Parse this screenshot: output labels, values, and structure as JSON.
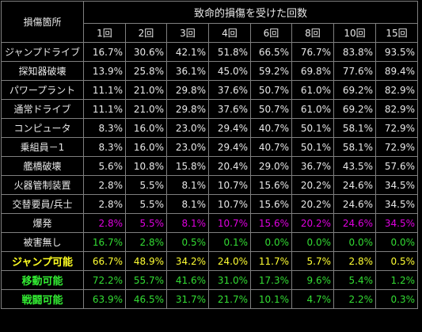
{
  "header": {
    "location_label": "損傷箇所",
    "title": "致命的損傷を受けた回数",
    "columns": [
      "1回",
      "2回",
      "3回",
      "4回",
      "6回",
      "8回",
      "10回",
      "15回"
    ]
  },
  "rows": [
    {
      "label": "ジャンプドライブ",
      "values": [
        "16.7%",
        "30.6%",
        "42.1%",
        "51.8%",
        "66.5%",
        "76.7%",
        "83.8%",
        "93.5%"
      ]
    },
    {
      "label": "探知器破壊",
      "values": [
        "13.9%",
        "25.8%",
        "36.1%",
        "45.0%",
        "59.2%",
        "69.8%",
        "77.6%",
        "89.4%"
      ]
    },
    {
      "label": "パワープラント",
      "values": [
        "11.1%",
        "21.0%",
        "29.8%",
        "37.6%",
        "50.7%",
        "61.0%",
        "69.2%",
        "82.9%"
      ]
    },
    {
      "label": "通常ドライブ",
      "values": [
        "11.1%",
        "21.0%",
        "29.8%",
        "37.6%",
        "50.7%",
        "61.0%",
        "69.2%",
        "82.9%"
      ]
    },
    {
      "label": "コンピュータ",
      "values": [
        "8.3%",
        "16.0%",
        "23.0%",
        "29.4%",
        "40.7%",
        "50.1%",
        "58.1%",
        "72.9%"
      ]
    },
    {
      "label": "乗組員－1",
      "values": [
        "8.3%",
        "16.0%",
        "23.0%",
        "29.4%",
        "40.7%",
        "50.1%",
        "58.1%",
        "72.9%"
      ]
    },
    {
      "label": "艦橋破壊",
      "values": [
        "5.6%",
        "10.8%",
        "15.8%",
        "20.4%",
        "29.0%",
        "36.7%",
        "43.5%",
        "57.6%"
      ]
    },
    {
      "label": "火器管制装置",
      "values": [
        "2.8%",
        "5.5%",
        "8.1%",
        "10.7%",
        "15.6%",
        "20.2%",
        "24.6%",
        "34.5%"
      ]
    },
    {
      "label": "交替要員/兵士",
      "values": [
        "2.8%",
        "5.5%",
        "8.1%",
        "10.7%",
        "15.6%",
        "20.2%",
        "24.6%",
        "34.5%"
      ]
    }
  ],
  "explosion": {
    "label": "爆発",
    "values": [
      "2.8%",
      "5.5%",
      "8.1%",
      "10.7%",
      "15.6%",
      "20.2%",
      "24.6%",
      "34.5%"
    ]
  },
  "no_damage": {
    "label": "被害無し",
    "values": [
      "16.7%",
      "2.8%",
      "0.5%",
      "0.1%",
      "0.0%",
      "0.0%",
      "0.0%",
      "0.0%"
    ]
  },
  "jump_ok": {
    "label": "ジャンプ可能",
    "values": [
      "66.7%",
      "48.9%",
      "34.2%",
      "24.0%",
      "11.7%",
      "5.7%",
      "2.8%",
      "0.5%"
    ]
  },
  "move_ok": {
    "label": "移動可能",
    "values": [
      "72.2%",
      "55.7%",
      "41.6%",
      "31.0%",
      "17.3%",
      "9.6%",
      "5.4%",
      "1.2%"
    ]
  },
  "battle_ok": {
    "label": "戦闘可能",
    "values": [
      "63.9%",
      "46.5%",
      "31.7%",
      "21.7%",
      "10.1%",
      "4.7%",
      "2.2%",
      "0.3%"
    ]
  }
}
